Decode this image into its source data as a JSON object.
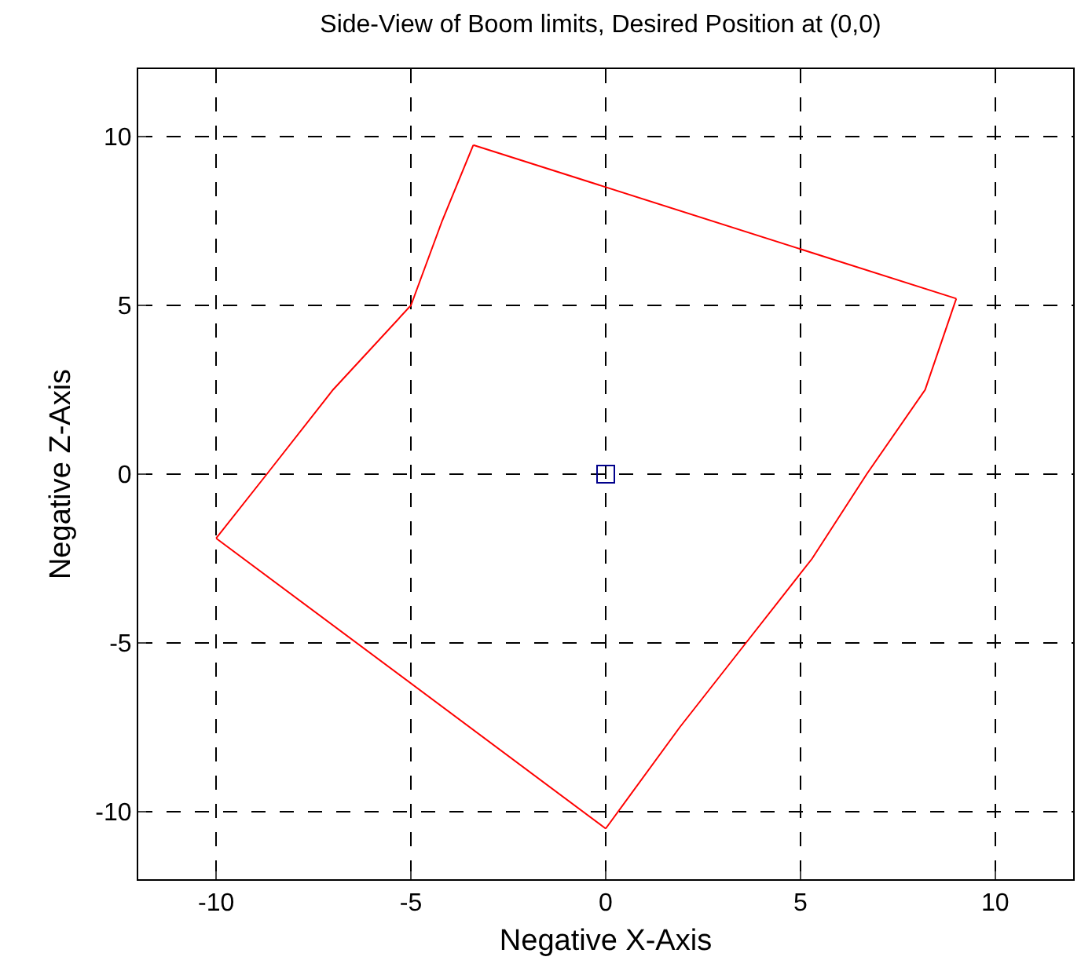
{
  "chart_data": {
    "type": "line",
    "title": "Side-View of Boom limits, Desired Position at (0,0)",
    "xlabel": "Negative X-Axis",
    "ylabel": "Negative Z-Axis",
    "xlim": [
      -12,
      12
    ],
    "ylim": [
      -12,
      12
    ],
    "xticks": [
      -10,
      -5,
      0,
      5,
      10
    ],
    "yticks": [
      -10,
      -5,
      0,
      5,
      10
    ],
    "grid": true,
    "series": [
      {
        "color": "#ff0000",
        "marker": "none",
        "x": [
          -3.4,
          9.0
        ],
        "values": [
          9.75,
          5.2
        ]
      },
      {
        "color": "#ff0000",
        "marker": "none",
        "x": [
          0,
          1.9,
          3.6,
          5.3,
          6.7,
          8.2,
          9.0
        ],
        "values": [
          -10.5,
          -7.5,
          -5,
          -2.5,
          0,
          2.5,
          5.2
        ]
      },
      {
        "color": "#ff0000",
        "marker": "none",
        "x": [
          -10,
          0
        ],
        "values": [
          -1.9,
          -10.5
        ]
      },
      {
        "color": "#ff0000",
        "marker": "none",
        "x": [
          -10,
          -8.7,
          -7.0,
          -5.0,
          -4.2,
          -3.4
        ],
        "values": [
          -1.9,
          0,
          2.5,
          5,
          7.5,
          9.75
        ]
      },
      {
        "type": "scatter",
        "color": "#00008b",
        "marker": "square",
        "x": [
          0
        ],
        "values": [
          0
        ]
      }
    ]
  }
}
